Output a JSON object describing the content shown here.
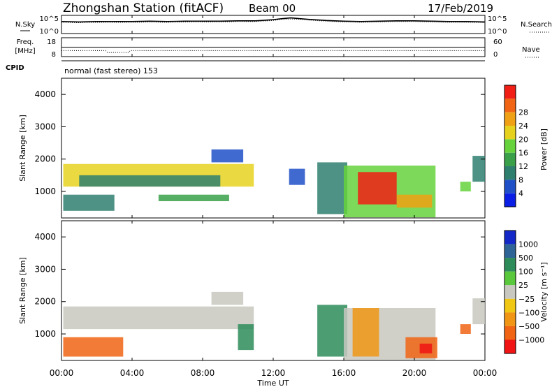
{
  "header": {
    "station": "Zhongshan Station (fitACF)",
    "beam": "Beam 00",
    "date": "17/Feb/2019"
  },
  "params": {
    "nsky_label": "N.Sky",
    "nsearch_label": "N.Search",
    "noise_ticks": [
      "10^5",
      "10^0"
    ],
    "freq_label_1": "Freq.",
    "freq_label_2": "[MHz]",
    "freq_ticks": [
      "18",
      "8"
    ],
    "nave_label": "Nave",
    "nave_ticks": [
      "60",
      "0"
    ],
    "cpid_label": "CPID",
    "cpid_text": "normal (fast stereo) 153"
  },
  "axes": {
    "xlabel": "Time UT",
    "xticks": [
      "00:00",
      "04:00",
      "08:00",
      "12:00",
      "16:00",
      "20:00",
      "00:00"
    ],
    "xrange_hours": [
      0,
      24
    ],
    "ylabel": "Slant Range [km]",
    "yticks": [
      "1000",
      "2000",
      "3000",
      "4000"
    ],
    "yrange_km": [
      180,
      4500
    ]
  },
  "power_scale": {
    "label": "Power [dB]",
    "ticks": [
      "4",
      "8",
      "12",
      "16",
      "20",
      "24",
      "28"
    ],
    "colors": [
      "#0a1ee6",
      "#2050c8",
      "#2e7f6e",
      "#3aa04a",
      "#66d23c",
      "#e6d21e",
      "#f0a014",
      "#f06414",
      "#f01e14"
    ]
  },
  "velocity_scale": {
    "label": "Velocity [m s⁻¹]",
    "ticks": [
      "1000",
      "500",
      "100",
      "25",
      "−25",
      "−100",
      "−500",
      "−1000"
    ],
    "colors": [
      "#1428c8",
      "#2e6496",
      "#2e8c5a",
      "#5ac83c",
      "#c8c8c0",
      "#f0c814",
      "#f09614",
      "#f06414",
      "#f01414"
    ]
  },
  "chart_data": [
    {
      "type": "line",
      "panel": "noise",
      "series": [
        {
          "name": "N.Sky",
          "x_hours": [
            0,
            1,
            2,
            3,
            4,
            5,
            6,
            7,
            8,
            9,
            10,
            11,
            12,
            12.5,
            13,
            13.5,
            14,
            15,
            16,
            17,
            18,
            19,
            20,
            21,
            22,
            23,
            24
          ],
          "log10_values": [
            3.3,
            3.2,
            3.3,
            3.3,
            3.3,
            3.4,
            3.3,
            3.4,
            3.4,
            3.4,
            3.5,
            3.5,
            3.8,
            4.1,
            4.3,
            4.1,
            3.9,
            3.6,
            3.4,
            3.3,
            3.4,
            3.5,
            3.5,
            3.4,
            3.3,
            3.3,
            3.2
          ]
        },
        {
          "name": "N.Search",
          "x_hours": [
            0,
            1,
            2,
            3,
            4,
            5,
            6,
            7,
            8,
            9,
            10,
            11,
            12,
            12.5,
            13,
            13.5,
            14,
            15,
            16,
            17,
            18,
            19,
            20,
            21,
            22,
            23,
            24
          ],
          "log10_values": [
            3.1,
            3.0,
            3.1,
            3.1,
            3.1,
            3.2,
            3.1,
            3.2,
            3.2,
            3.2,
            3.3,
            3.3,
            3.6,
            3.9,
            4.0,
            3.9,
            3.7,
            3.4,
            3.2,
            3.1,
            3.2,
            3.3,
            3.3,
            3.2,
            3.1,
            3.1,
            3.0
          ]
        }
      ]
    },
    {
      "type": "line",
      "panel": "frequency",
      "series": [
        {
          "name": "Freq.",
          "x_hours": [
            0,
            2.5,
            2.6,
            3.8,
            3.9,
            24
          ],
          "values_mhz": [
            11.2,
            11.2,
            10.2,
            10.2,
            11.2,
            11.2
          ]
        },
        {
          "name": "Nave",
          "x_hours": [
            0,
            24
          ],
          "values": [
            30,
            30
          ]
        }
      ]
    },
    {
      "type": "heatmap",
      "panel": "power",
      "x_unit": "hours UT",
      "y_unit": "km",
      "patches": [
        {
          "t": [
            0.1,
            10.9
          ],
          "r": [
            1150,
            1850
          ],
          "level": 5
        },
        {
          "t": [
            1.0,
            9.0
          ],
          "r": [
            1150,
            1500
          ],
          "level": 2
        },
        {
          "t": [
            0.1,
            3.0
          ],
          "r": [
            400,
            900
          ],
          "level": 2
        },
        {
          "t": [
            5.5,
            9.5
          ],
          "r": [
            700,
            900
          ],
          "level": 3
        },
        {
          "t": [
            8.5,
            10.3
          ],
          "r": [
            1900,
            2300
          ],
          "level": 1
        },
        {
          "t": [
            12.9,
            13.8
          ],
          "r": [
            1200,
            1700
          ],
          "level": 1
        },
        {
          "t": [
            14.5,
            16.2
          ],
          "r": [
            300,
            1900
          ],
          "level": 2
        },
        {
          "t": [
            16.0,
            21.2
          ],
          "r": [
            200,
            1800
          ],
          "level": 4
        },
        {
          "t": [
            16.8,
            19.0
          ],
          "r": [
            600,
            1600
          ],
          "level": 8
        },
        {
          "t": [
            19.0,
            21.0
          ],
          "r": [
            500,
            900
          ],
          "level": 6
        },
        {
          "t": [
            22.6,
            23.2
          ],
          "r": [
            1000,
            1300
          ],
          "level": 4
        },
        {
          "t": [
            23.3,
            24.0
          ],
          "r": [
            1300,
            2100
          ],
          "level": 2
        }
      ]
    },
    {
      "type": "heatmap",
      "panel": "velocity",
      "x_unit": "hours UT",
      "y_unit": "km",
      "patches": [
        {
          "t": [
            0.1,
            10.9
          ],
          "r": [
            1150,
            1850
          ],
          "level": 4
        },
        {
          "t": [
            0.1,
            3.5
          ],
          "r": [
            300,
            900
          ],
          "level": 7
        },
        {
          "t": [
            8.5,
            10.3
          ],
          "r": [
            1900,
            2300
          ],
          "level": 4
        },
        {
          "t": [
            10.0,
            10.9
          ],
          "r": [
            500,
            1300
          ],
          "level": 2
        },
        {
          "t": [
            14.5,
            16.2
          ],
          "r": [
            300,
            1900
          ],
          "level": 2
        },
        {
          "t": [
            16.0,
            21.2
          ],
          "r": [
            200,
            1800
          ],
          "level": 4
        },
        {
          "t": [
            16.5,
            18.0
          ],
          "r": [
            300,
            1800
          ],
          "level": 6
        },
        {
          "t": [
            19.5,
            21.3
          ],
          "r": [
            250,
            900
          ],
          "level": 7
        },
        {
          "t": [
            20.3,
            21.0
          ],
          "r": [
            400,
            700
          ],
          "level": 8
        },
        {
          "t": [
            22.6,
            23.2
          ],
          "r": [
            1000,
            1300
          ],
          "level": 7
        },
        {
          "t": [
            23.3,
            24.0
          ],
          "r": [
            1300,
            2100
          ],
          "level": 4
        }
      ]
    }
  ]
}
